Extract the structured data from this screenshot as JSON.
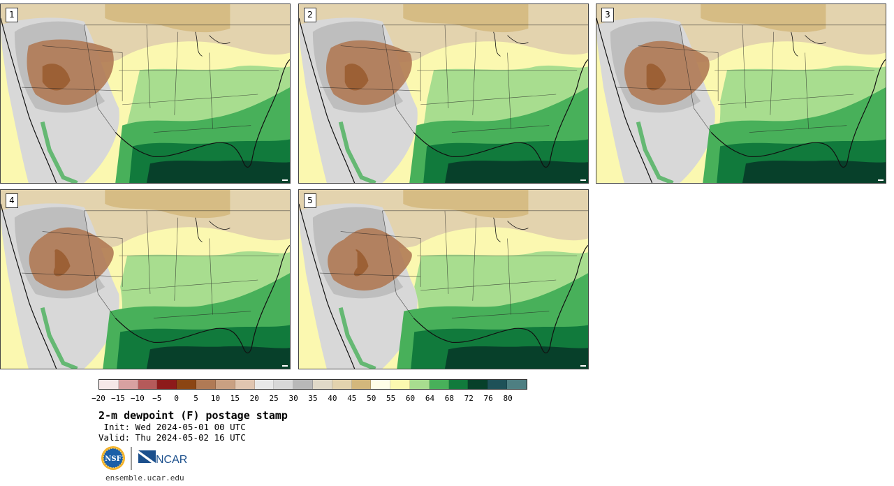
{
  "panels": [
    {
      "label": "1"
    },
    {
      "label": "2"
    },
    {
      "label": "3"
    },
    {
      "label": "4"
    },
    {
      "label": "5"
    }
  ],
  "colorbar": {
    "colors": [
      "#f6e8e8",
      "#d8a1a1",
      "#b55a5a",
      "#8d1a1a",
      "#8b4513",
      "#b07a55",
      "#c9a082",
      "#e0c5b0",
      "#e8e8e8",
      "#d8d8d8",
      "#b8b8b8",
      "#e0d9c8",
      "#e3d3ae",
      "#d3b77c",
      "#fffde8",
      "#fbf8b0",
      "#a8dd8f",
      "#48b05a",
      "#117a3c",
      "#07402a",
      "#1e5158",
      "#4e7f82"
    ],
    "tick_labels": [
      "−20",
      "−15",
      "−10",
      "−5",
      "0",
      "5",
      "10",
      "15",
      "20",
      "25",
      "30",
      "35",
      "40",
      "45",
      "50",
      "55",
      "60",
      "64",
      "68",
      "72",
      "76",
      "80"
    ]
  },
  "title": "2-m dewpoint (F) postage stamp",
  "init": " Init: Wed 2024-05-01 00 UTC",
  "valid": "Valid: Thu 2024-05-02 16 UTC",
  "logos": {
    "nsf": "NSF",
    "ncar": "NCAR"
  },
  "url": "ensemble.ucar.edu"
}
